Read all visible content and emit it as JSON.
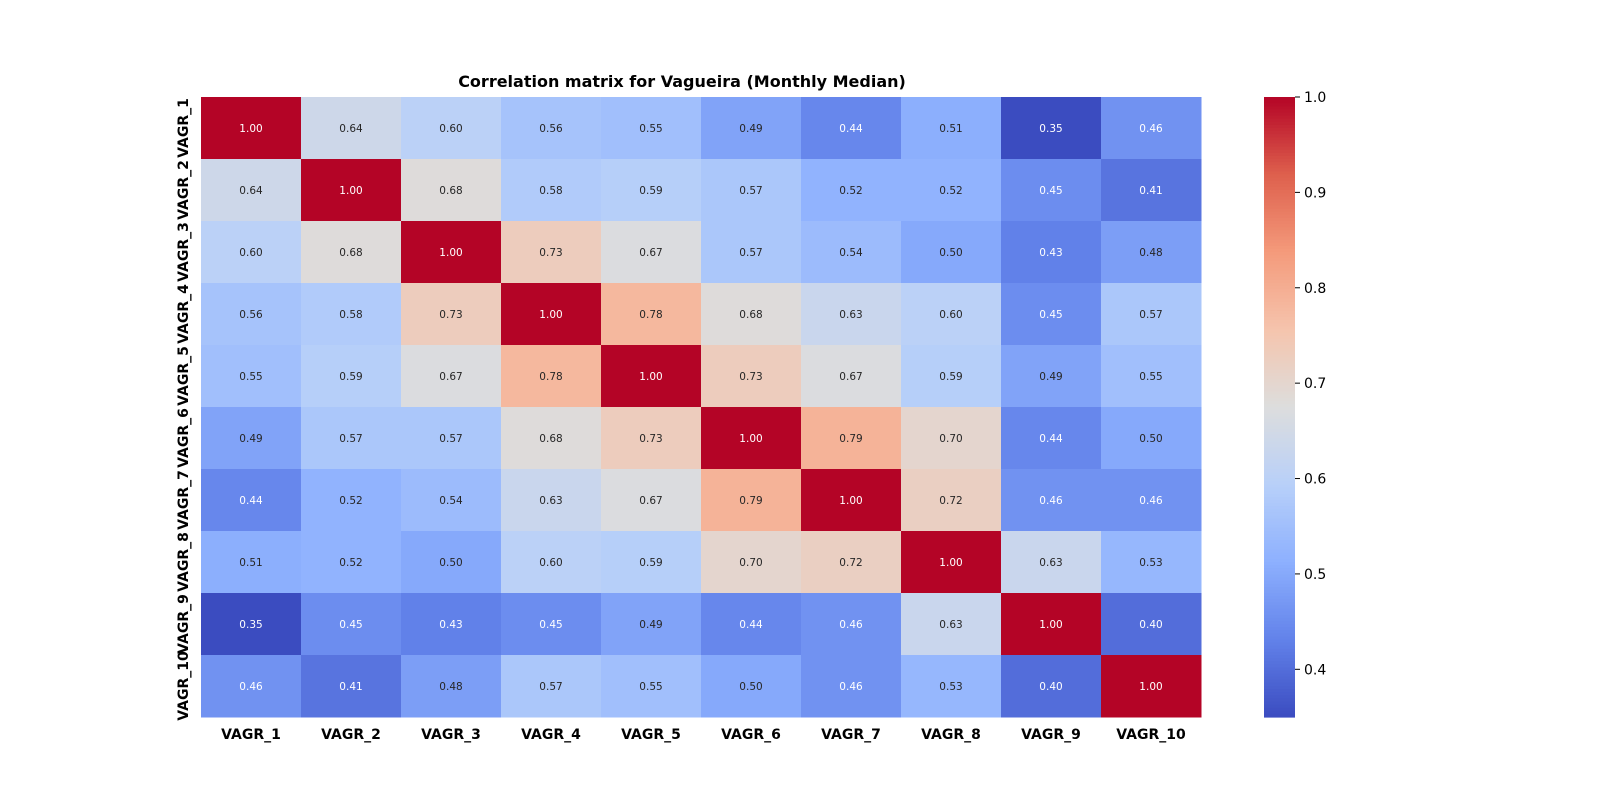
{
  "chart_data": {
    "type": "heatmap",
    "title": "Correlation matrix for Vagueira (Monthly Median)",
    "x_categories": [
      "VAGR_1",
      "VAGR_2",
      "VAGR_3",
      "VAGR_4",
      "VAGR_5",
      "VAGR_6",
      "VAGR_7",
      "VAGR_8",
      "VAGR_9",
      "VAGR_10"
    ],
    "y_categories": [
      "VAGR_1",
      "VAGR_2",
      "VAGR_3",
      "VAGR_4",
      "VAGR_5",
      "VAGR_6",
      "VAGR_7",
      "VAGR_8",
      "VAGR_9",
      "VAGR_10"
    ],
    "values": [
      [
        1.0,
        0.64,
        0.6,
        0.56,
        0.55,
        0.49,
        0.44,
        0.51,
        0.35,
        0.46
      ],
      [
        0.64,
        1.0,
        0.68,
        0.58,
        0.59,
        0.57,
        0.52,
        0.52,
        0.45,
        0.41
      ],
      [
        0.6,
        0.68,
        1.0,
        0.73,
        0.67,
        0.57,
        0.54,
        0.5,
        0.43,
        0.48
      ],
      [
        0.56,
        0.58,
        0.73,
        1.0,
        0.78,
        0.68,
        0.63,
        0.6,
        0.45,
        0.57
      ],
      [
        0.55,
        0.59,
        0.67,
        0.78,
        1.0,
        0.73,
        0.67,
        0.59,
        0.49,
        0.55
      ],
      [
        0.49,
        0.57,
        0.57,
        0.68,
        0.73,
        1.0,
        0.79,
        0.7,
        0.44,
        0.5
      ],
      [
        0.44,
        0.52,
        0.54,
        0.63,
        0.67,
        0.79,
        1.0,
        0.72,
        0.46,
        0.46
      ],
      [
        0.51,
        0.52,
        0.5,
        0.6,
        0.59,
        0.7,
        0.72,
        1.0,
        0.63,
        0.53
      ],
      [
        0.35,
        0.45,
        0.43,
        0.45,
        0.49,
        0.44,
        0.46,
        0.63,
        1.0,
        0.4
      ],
      [
        0.46,
        0.41,
        0.48,
        0.57,
        0.55,
        0.5,
        0.46,
        0.53,
        0.4,
        1.0
      ]
    ],
    "value_format": "0.00",
    "colormap": "coolwarm",
    "color_range": [
      0.35,
      1.0
    ],
    "colorbar_ticks": [
      "0.4",
      "0.5",
      "0.6",
      "0.7",
      "0.8",
      "0.9",
      "1.0"
    ],
    "colorbar_tick_values": [
      0.4,
      0.5,
      0.6,
      0.7,
      0.8,
      0.9,
      1.0
    ],
    "low_color": "#3b4cc0",
    "mid_color": "#dddddd",
    "high_color": "#b40426",
    "grid": false,
    "legend": "colorbar-right"
  }
}
